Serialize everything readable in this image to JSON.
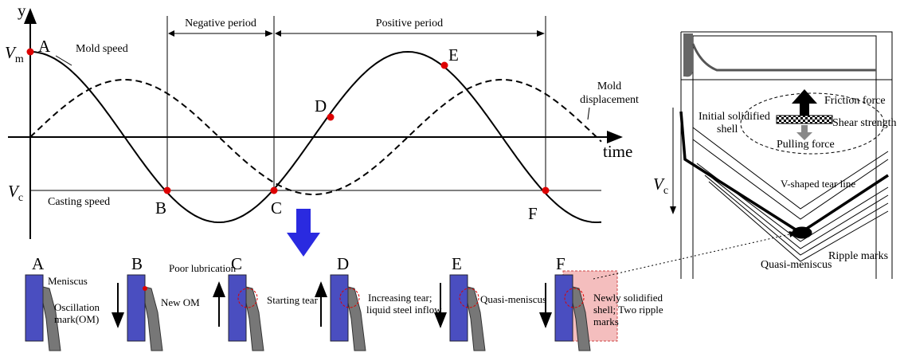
{
  "plot": {
    "y_axis": "y",
    "x_axis": "time",
    "vm": {
      "symbol": "V",
      "subscript": "m"
    },
    "vc": {
      "symbol": "V",
      "subscript": "c"
    },
    "mold_speed": "Mold speed",
    "casting_speed": "Casting speed",
    "mold_displacement": [
      "Mold",
      "displacement"
    ],
    "negative_period": "Negative period",
    "positive_period": "Positive period",
    "points": [
      "A",
      "B",
      "C",
      "D",
      "E",
      "F"
    ]
  },
  "stages": [
    {
      "label": "A",
      "notes": [
        "Meniscus",
        "Oscillation",
        "mark(OM)"
      ]
    },
    {
      "label": "B",
      "notes": [
        "Poor lubrication",
        "New OM"
      ]
    },
    {
      "label": "C",
      "notes": [
        "Starting tear"
      ]
    },
    {
      "label": "D",
      "notes": [
        "Increasing tear;",
        "liquid steel inflow"
      ]
    },
    {
      "label": "E",
      "notes": [
        "Quasi-meniscus"
      ]
    },
    {
      "label": "F",
      "notes": [
        "Newly solidified",
        "shell; Two ripple",
        "marks"
      ]
    }
  ],
  "mold": {
    "friction_force": "Friction force",
    "initial_shell": [
      "Initial solidified",
      "shell"
    ],
    "shear_strength": "Shear strength",
    "pulling_force": "Pulling force",
    "tear_line": "V-shaped tear line",
    "quasi_meniscus": "Quasi-meniscus",
    "ripple_marks": "Ripple marks",
    "vc": {
      "symbol": "V",
      "subscript": "c"
    }
  }
}
